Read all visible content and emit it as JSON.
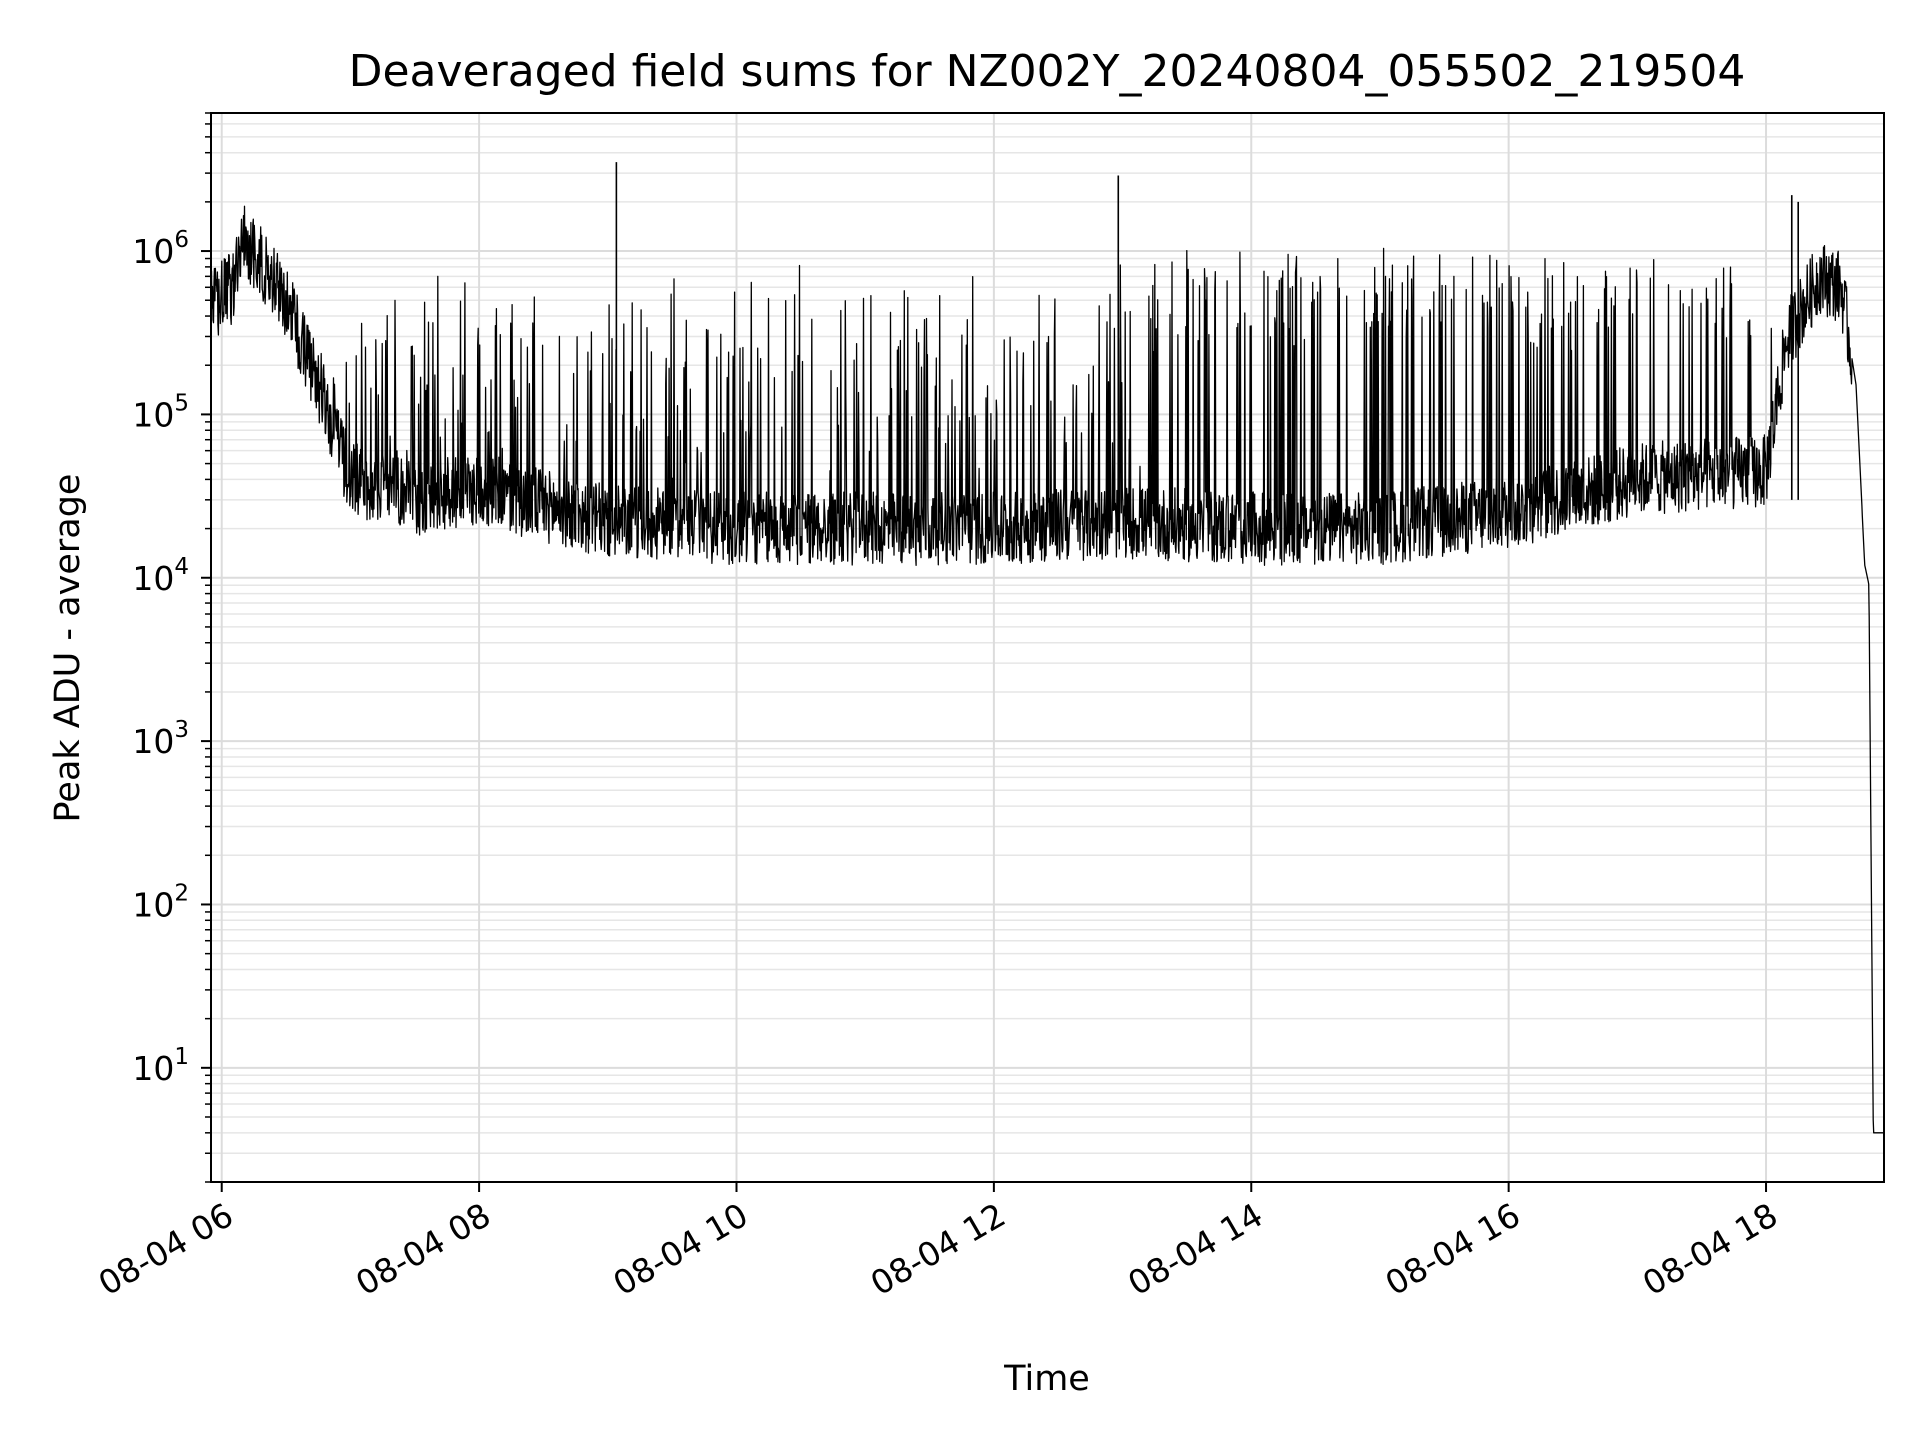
{
  "chart_data": {
    "type": "line",
    "title": "Deaveraged field sums for NZ002Y_20240804_055502_219504",
    "xlabel": "Time",
    "ylabel": "Peak ADU - average",
    "yscale": "log",
    "grid": true,
    "legend": "none",
    "line_color": "#000000",
    "xlim": [
      "2024-08-04 05:55",
      "2024-08-04 18:55"
    ],
    "ylim": [
      2,
      7000000
    ],
    "xticks": [
      {
        "t": "2024-08-04 06:00",
        "label": "08-04 06"
      },
      {
        "t": "2024-08-04 08:00",
        "label": "08-04 08"
      },
      {
        "t": "2024-08-04 10:00",
        "label": "08-04 10"
      },
      {
        "t": "2024-08-04 12:00",
        "label": "08-04 12"
      },
      {
        "t": "2024-08-04 14:00",
        "label": "08-04 14"
      },
      {
        "t": "2024-08-04 16:00",
        "label": "08-04 16"
      },
      {
        "t": "2024-08-04 18:00",
        "label": "08-04 18"
      }
    ],
    "yticks": [
      {
        "v": 10,
        "exp": "1"
      },
      {
        "v": 100,
        "exp": "2"
      },
      {
        "v": 1000,
        "exp": "3"
      },
      {
        "v": 10000,
        "exp": "4"
      },
      {
        "v": 100000,
        "exp": "5"
      },
      {
        "v": 1000000,
        "exp": "6"
      }
    ],
    "series": [
      {
        "x": [
          "2024-08-04 05:55",
          "2024-08-04 06:05",
          "2024-08-04 06:10",
          "2024-08-04 06:30",
          "2024-08-04 06:45",
          "2024-08-04 07:00",
          "2024-08-04 07:30",
          "2024-08-04 08:00",
          "2024-08-04 09:00",
          "2024-08-04 10:00",
          "2024-08-04 11:00",
          "2024-08-04 12:00",
          "2024-08-04 13:00",
          "2024-08-04 14:00",
          "2024-08-04 15:00",
          "2024-08-04 16:00",
          "2024-08-04 17:00",
          "2024-08-04 18:00",
          "2024-08-04 18:10",
          "2024-08-04 18:25",
          "2024-08-04 18:35",
          "2024-08-04 18:42",
          "2024-08-04 18:46",
          "2024-08-04 18:48",
          "2024-08-04 18:50",
          "2024-08-04 18:55"
        ],
        "y": [
          450000,
          600000,
          1200000,
          500000,
          150000,
          40000,
          30000,
          35000,
          22000,
          20000,
          20000,
          20000,
          22000,
          20000,
          20000,
          25000,
          40000,
          45000,
          300000,
          700000,
          600000,
          150000,
          12000,
          9000,
          4,
          4
        ]
      }
    ],
    "spikes": [
      {
        "t": "2024-08-04 09:04",
        "peak": 3500000
      },
      {
        "t": "2024-08-04 12:58",
        "peak": 2900000
      },
      {
        "t": "2024-08-04 18:12",
        "peak": 2200000
      },
      {
        "t": "2024-08-04 18:15",
        "peak": 2000000
      }
    ]
  }
}
